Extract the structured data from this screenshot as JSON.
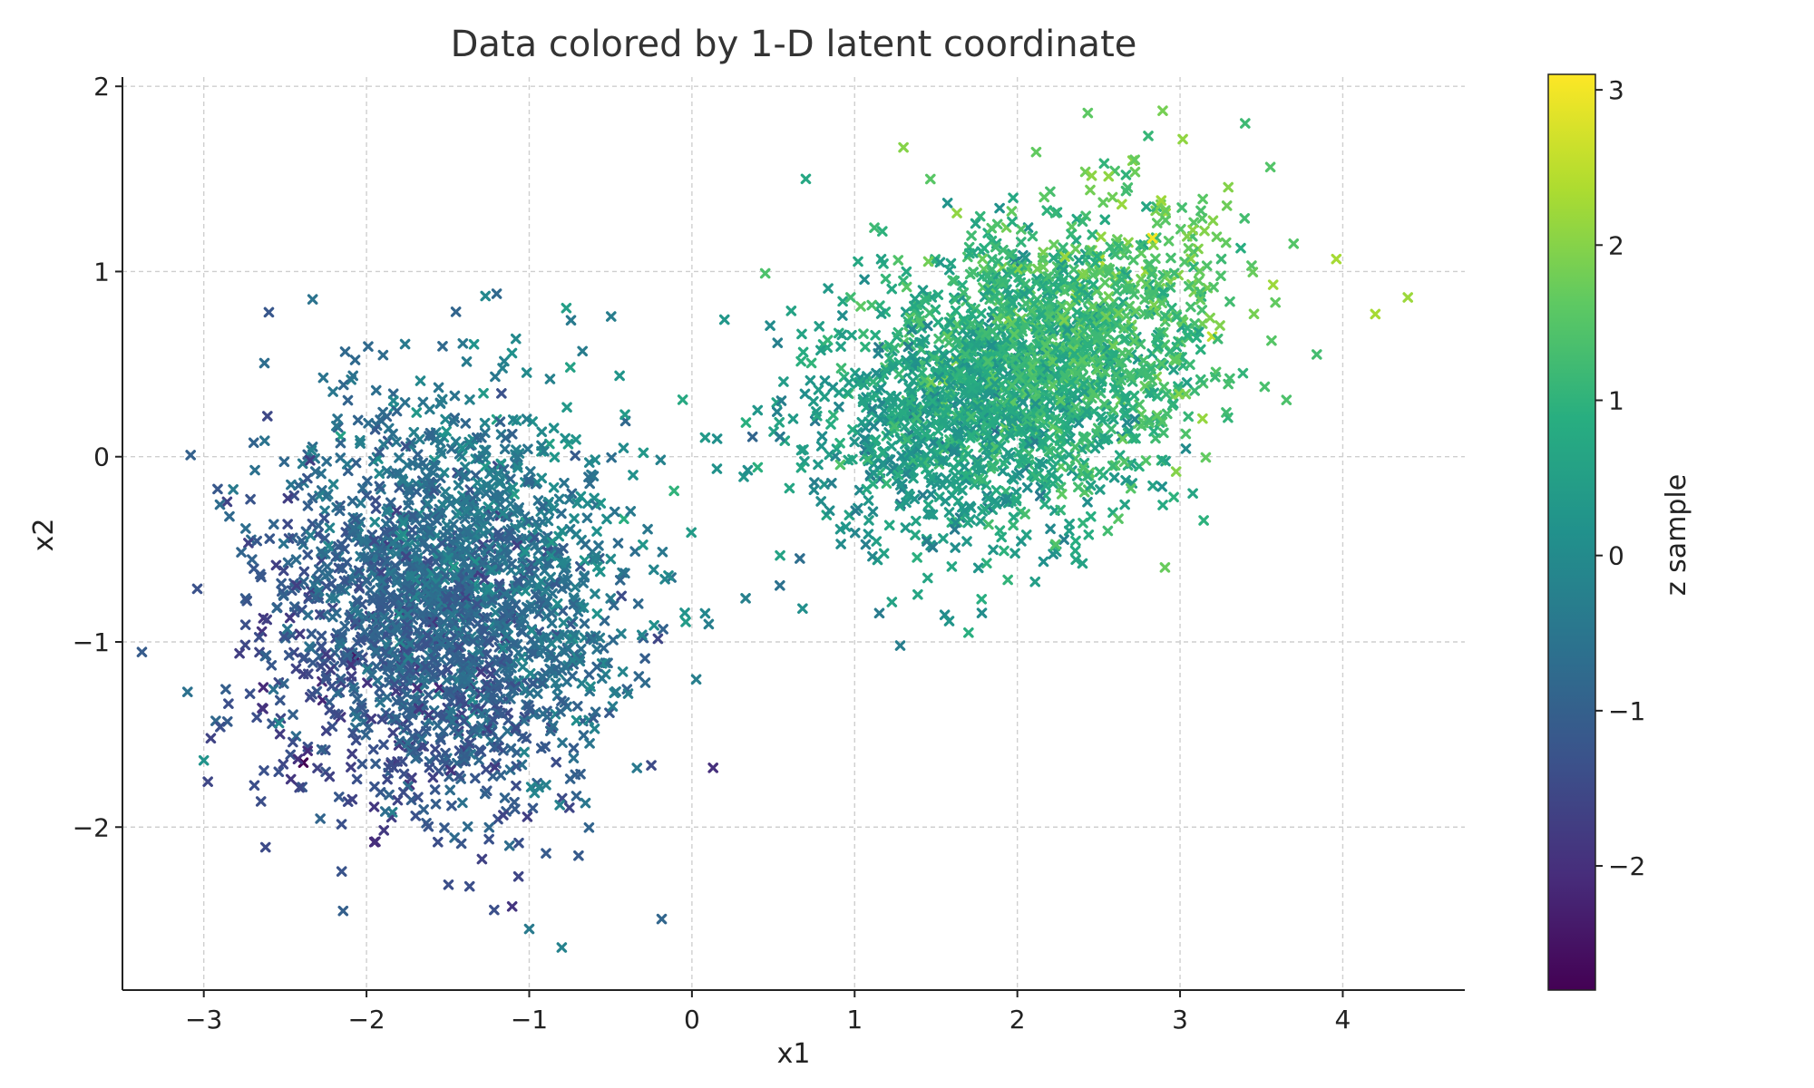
{
  "chart_data": {
    "type": "scatter",
    "title": "Data colored by 1-D latent coordinate",
    "xlabel": "x1",
    "ylabel": "x2",
    "xlim": [
      -3.5,
      4.75
    ],
    "ylim": [
      -2.88,
      2.05
    ],
    "xticks": [
      -3,
      -2,
      -1,
      0,
      1,
      2,
      3,
      4
    ],
    "yticks": [
      -2,
      -1,
      0,
      1,
      2
    ],
    "xtick_labels": [
      "−3",
      "−2",
      "−1",
      "0",
      "1",
      "2",
      "3",
      "4"
    ],
    "ytick_labels": [
      "−2",
      "−1",
      "0",
      "1",
      "2"
    ],
    "grid": true,
    "marker": "x",
    "colormap": "viridis",
    "colorbar": {
      "label": "z sample",
      "range": [
        -2.8,
        3.1
      ],
      "ticks": [
        -2,
        -1,
        0,
        1,
        2,
        3
      ],
      "tick_labels": [
        "−2",
        "−1",
        "0",
        "1",
        "2",
        "3"
      ]
    },
    "clusters": [
      {
        "center": [
          -1.5,
          -0.8
        ],
        "std": [
          0.55,
          0.55
        ],
        "count": 2000,
        "z_mean": -0.8,
        "z_std": 0.45
      },
      {
        "center": [
          2.0,
          0.45
        ],
        "std": [
          0.6,
          0.42
        ],
        "correlation": 0.35,
        "count": 2000,
        "z_mean": 0.9,
        "z_std": 0.5
      }
    ],
    "highlighted_points": [
      {
        "x": -2.6,
        "y": 0.78,
        "z": -1.2
      },
      {
        "x": -1.2,
        "y": 0.88,
        "z": -0.8
      },
      {
        "x": 0.2,
        "y": 0.74,
        "z": 0.3
      },
      {
        "x": -3.1,
        "y": -1.27,
        "z": -0.6
      },
      {
        "x": -3.0,
        "y": -1.64,
        "z": 0.2
      },
      {
        "x": 0.13,
        "y": -1.68,
        "z": -2.0
      },
      {
        "x": -0.8,
        "y": -2.65,
        "z": -0.2
      },
      {
        "x": -1.0,
        "y": -2.55,
        "z": -0.4
      },
      {
        "x": 1.3,
        "y": 1.67,
        "z": 2.0
      },
      {
        "x": 0.7,
        "y": 1.5,
        "z": 0.7
      },
      {
        "x": 4.4,
        "y": 0.86,
        "z": 2.2
      },
      {
        "x": 4.2,
        "y": 0.77,
        "z": 2.3
      },
      {
        "x": 3.4,
        "y": 1.8,
        "z": 1.2
      },
      {
        "x": 2.83,
        "y": 1.18,
        "z": 3.0
      },
      {
        "x": 1.28,
        "y": -1.02,
        "z": -0.3
      },
      {
        "x": 1.7,
        "y": -0.95,
        "z": 0.9
      },
      {
        "x": 0.68,
        "y": -0.82,
        "z": 0.1
      }
    ]
  }
}
